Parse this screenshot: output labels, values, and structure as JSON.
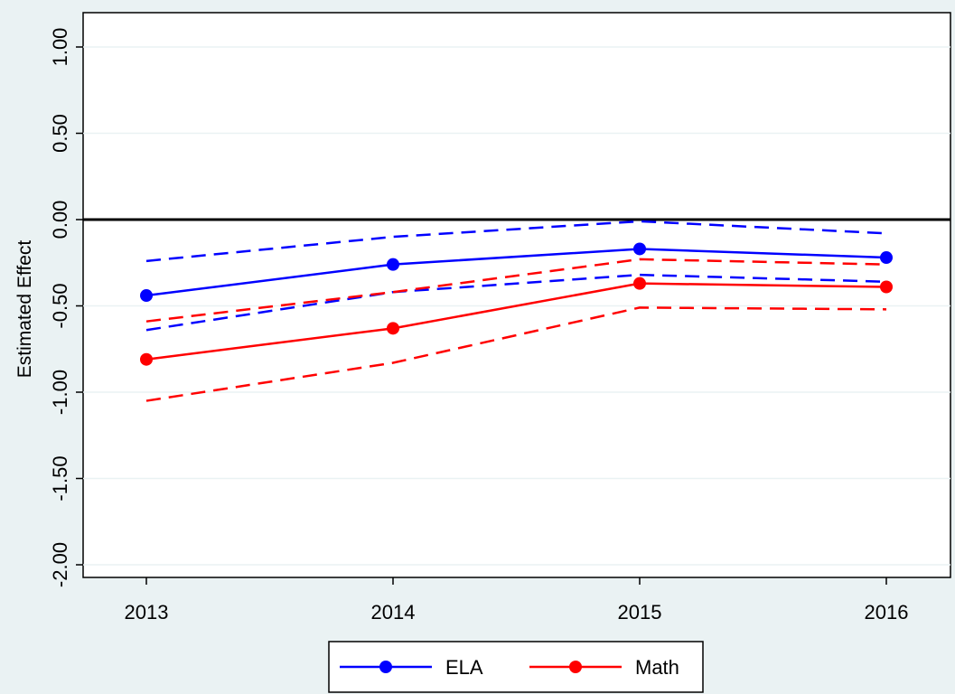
{
  "chart_data": {
    "type": "line",
    "title": "",
    "xlabel": "",
    "ylabel": "Estimated Effect",
    "x": [
      "2013",
      "2014",
      "2015",
      "2016"
    ],
    "ylim": [
      -2.0,
      1.0
    ],
    "yticks": [
      "1.00",
      "0.50",
      "0.00",
      "-0.50",
      "-1.00",
      "-1.50",
      "-2.00"
    ],
    "reference_line_y": 0.0,
    "grid": true,
    "legend_position": "bottom",
    "series": [
      {
        "name": "ELA",
        "color": "#0000ff",
        "values": [
          -0.44,
          -0.26,
          -0.17,
          -0.22
        ],
        "ci_upper": [
          -0.24,
          -0.1,
          -0.01,
          -0.08
        ],
        "ci_lower": [
          -0.64,
          -0.42,
          -0.32,
          -0.36
        ]
      },
      {
        "name": "Math",
        "color": "#ff0000",
        "values": [
          -0.81,
          -0.63,
          -0.37,
          -0.39
        ],
        "ci_upper": [
          -0.59,
          -0.42,
          -0.23,
          -0.26
        ],
        "ci_lower": [
          -1.05,
          -0.83,
          -0.51,
          -0.52
        ]
      }
    ]
  }
}
